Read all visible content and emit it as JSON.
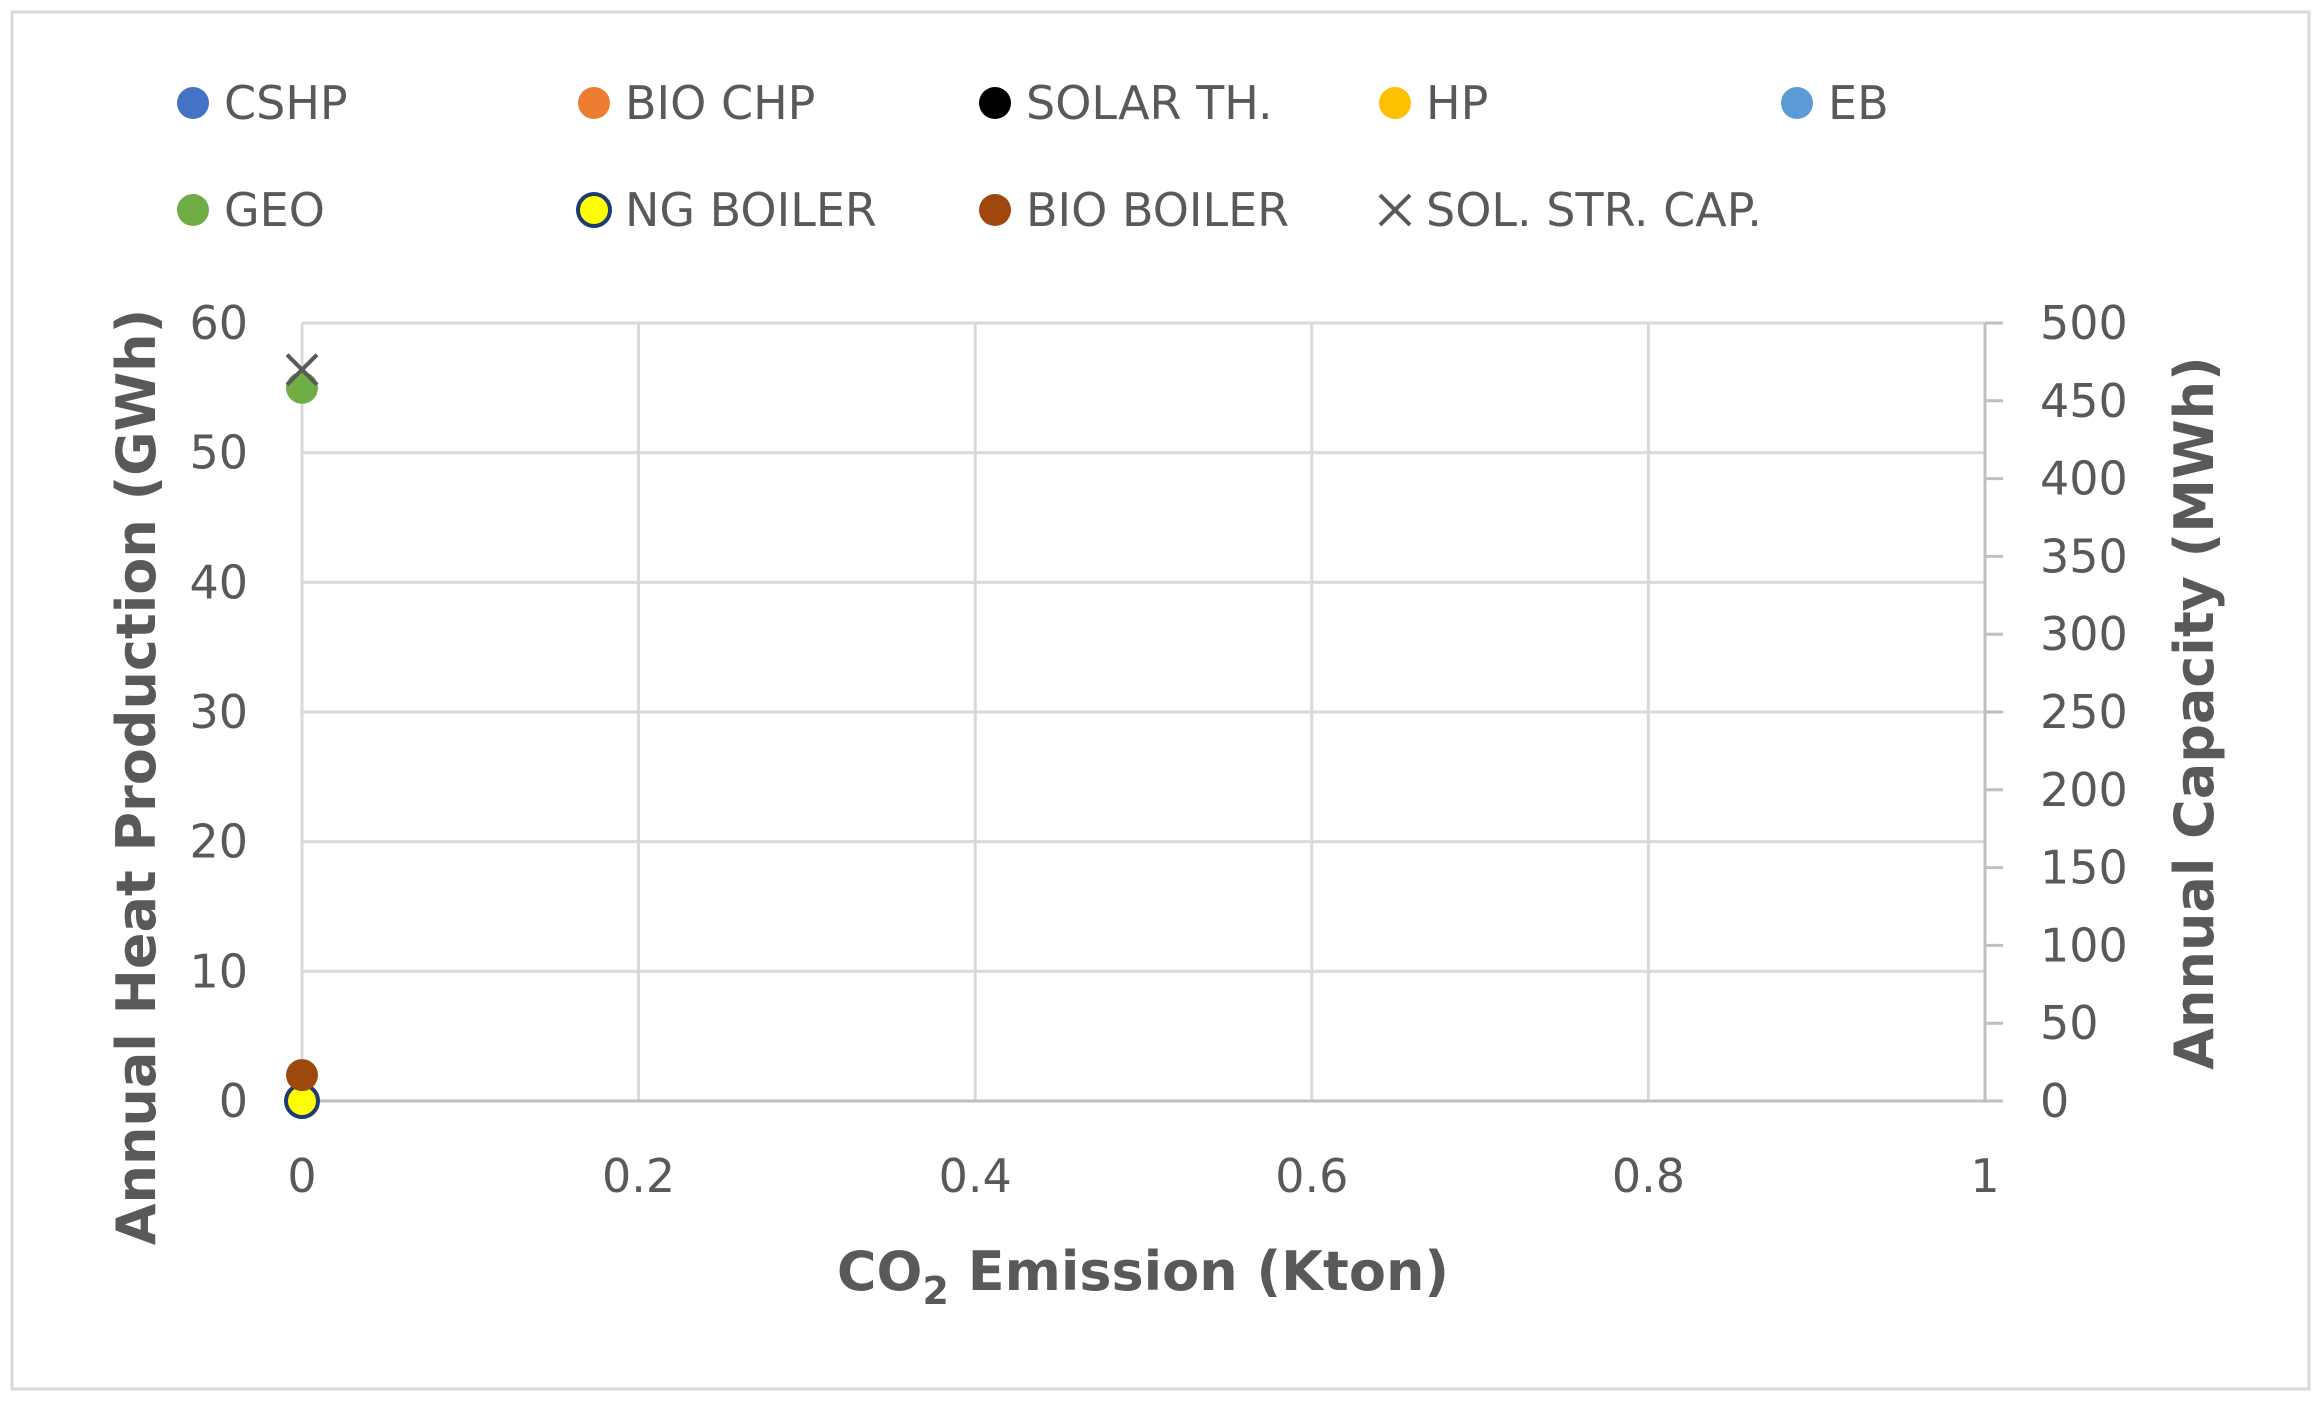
{
  "chart_data": {
    "type": "scatter",
    "xlabel": {
      "prefix": "CO",
      "sub": "2",
      "suffix": " Emission (Kton)"
    },
    "ylabel": "Annual Heat Production (GWh)",
    "y2label": "Annual Capacity (MWh)",
    "xlim": [
      0,
      1
    ],
    "ylim": [
      0,
      60
    ],
    "y2lim": [
      0,
      500
    ],
    "x_ticks": [
      "0",
      "0.2",
      "0.4",
      "0.6",
      "0.8",
      "1"
    ],
    "y_ticks": [
      "0",
      "10",
      "20",
      "30",
      "40",
      "50",
      "60"
    ],
    "y2_ticks": [
      "0",
      "50",
      "100",
      "150",
      "200",
      "250",
      "300",
      "350",
      "400",
      "450",
      "500"
    ],
    "grid": true,
    "legend_position": "top",
    "series": [
      {
        "name": "CSHP",
        "color": "#4472C4",
        "marker": "circle",
        "axis": "left",
        "points": [
          {
            "x": 0,
            "y": 0
          }
        ]
      },
      {
        "name": "BIO CHP",
        "color": "#ED7D31",
        "marker": "circle",
        "axis": "left",
        "points": [
          {
            "x": 0,
            "y": 0
          }
        ]
      },
      {
        "name": "SOLAR TH.",
        "color": "#000000",
        "marker": "circle",
        "axis": "left",
        "points": [
          {
            "x": 0,
            "y": 0
          }
        ]
      },
      {
        "name": "HP",
        "color": "#FFC000",
        "marker": "circle",
        "axis": "left",
        "points": [
          {
            "x": 0,
            "y": 0
          }
        ]
      },
      {
        "name": "EB",
        "color": "#5B9BD5",
        "marker": "circle",
        "axis": "left",
        "points": [
          {
            "x": 0,
            "y": 0
          }
        ]
      },
      {
        "name": "GEO",
        "color": "#70AD47",
        "marker": "circle",
        "axis": "left",
        "points": [
          {
            "x": 0,
            "y": 55
          }
        ]
      },
      {
        "name": "NG BOILER",
        "color": "#FFFF00",
        "stroke": "#1F3B73",
        "marker": "circle",
        "axis": "left",
        "points": [
          {
            "x": 0,
            "y": 0
          }
        ]
      },
      {
        "name": "BIO BOILER",
        "color": "#9E480E",
        "marker": "circle",
        "axis": "left",
        "points": [
          {
            "x": 0,
            "y": 2
          }
        ]
      },
      {
        "name": "SOL. STR. CAP.",
        "color": "#595959",
        "marker": "x",
        "axis": "right",
        "points": [
          {
            "x": 0,
            "y": 470
          }
        ]
      }
    ]
  }
}
